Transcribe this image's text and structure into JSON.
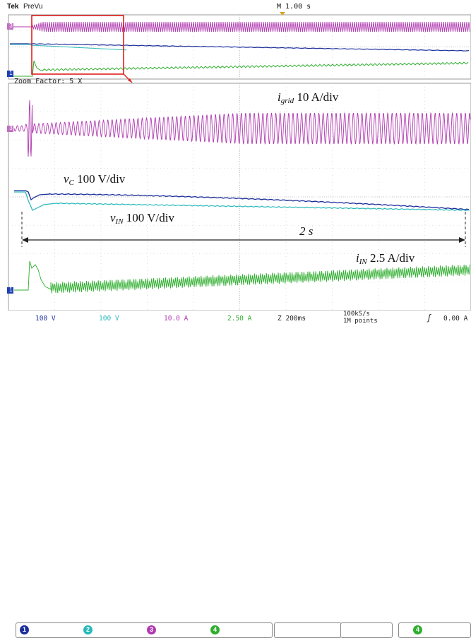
{
  "header": {
    "brand": "Tek",
    "mode": "PreVu",
    "timebase": "M 1.00 s"
  },
  "zoom": {
    "label": "Zoom Factor: 5 X"
  },
  "channel_markers": {
    "ch3": "3",
    "ch1": "1"
  },
  "annotations": {
    "igrid_sym": "i",
    "igrid_sub": "grid",
    "igrid_scale": " 10 A/div",
    "vc_sym": "v",
    "vc_sub": "C",
    "vc_scale": " 100 V/div",
    "vin_sym": "v",
    "vin_sub": "IN",
    "vin_scale": " 100 V/div",
    "duration": "2 s",
    "iin_sym": "i",
    "iin_sub": "IN",
    "iin_scale": " 2.5 A/div"
  },
  "status_bar": {
    "ch1": {
      "num": "1",
      "scale": "100 V",
      "color": "#1c2e9c"
    },
    "ch2": {
      "num": "2",
      "scale": "100 V",
      "color": "#28b8b8"
    },
    "ch3": {
      "num": "3",
      "scale": "10.0 A",
      "color": "#b03ab0"
    },
    "ch4": {
      "num": "4",
      "scale": "2.50 A",
      "color": "#2fae2f"
    },
    "zoom_time": "Z 200ms",
    "sample_rate": "100kS/s",
    "record_length": "1M points",
    "trigger_source": "4",
    "trigger_level": "0.00 A"
  },
  "colors": {
    "igrid": "#b03ab0",
    "vc": "#1c2e9c",
    "vin": "#28b8b8",
    "iin": "#2fae2f",
    "zoom_box": "#e0201c"
  }
}
